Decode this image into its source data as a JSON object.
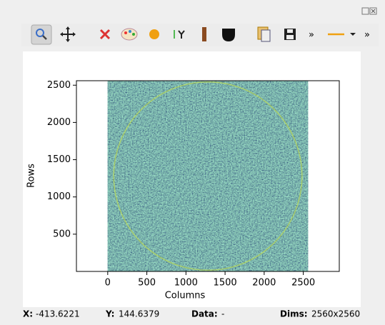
{
  "toolbar": {
    "overflow_1": "»",
    "overflow_2": "»"
  },
  "plot": {
    "xlabel": "Columns",
    "ylabel": "Rows",
    "xlim": [
      -400,
      2960
    ],
    "ylim": [
      0,
      2560
    ],
    "xticks": [
      0,
      500,
      1000,
      1500,
      2000,
      2500
    ],
    "yticks": [
      500,
      1000,
      1500,
      2000,
      2500
    ],
    "image_extent": [
      0,
      2560,
      0,
      2560
    ]
  },
  "status": {
    "x_label": "X:",
    "x_value": "-413.6221",
    "y_label": "Y:",
    "y_value": "144.6379",
    "data_label": "Data:",
    "data_value": "-",
    "dims_label": "Dims:",
    "dims_value": "2560x2560"
  }
}
